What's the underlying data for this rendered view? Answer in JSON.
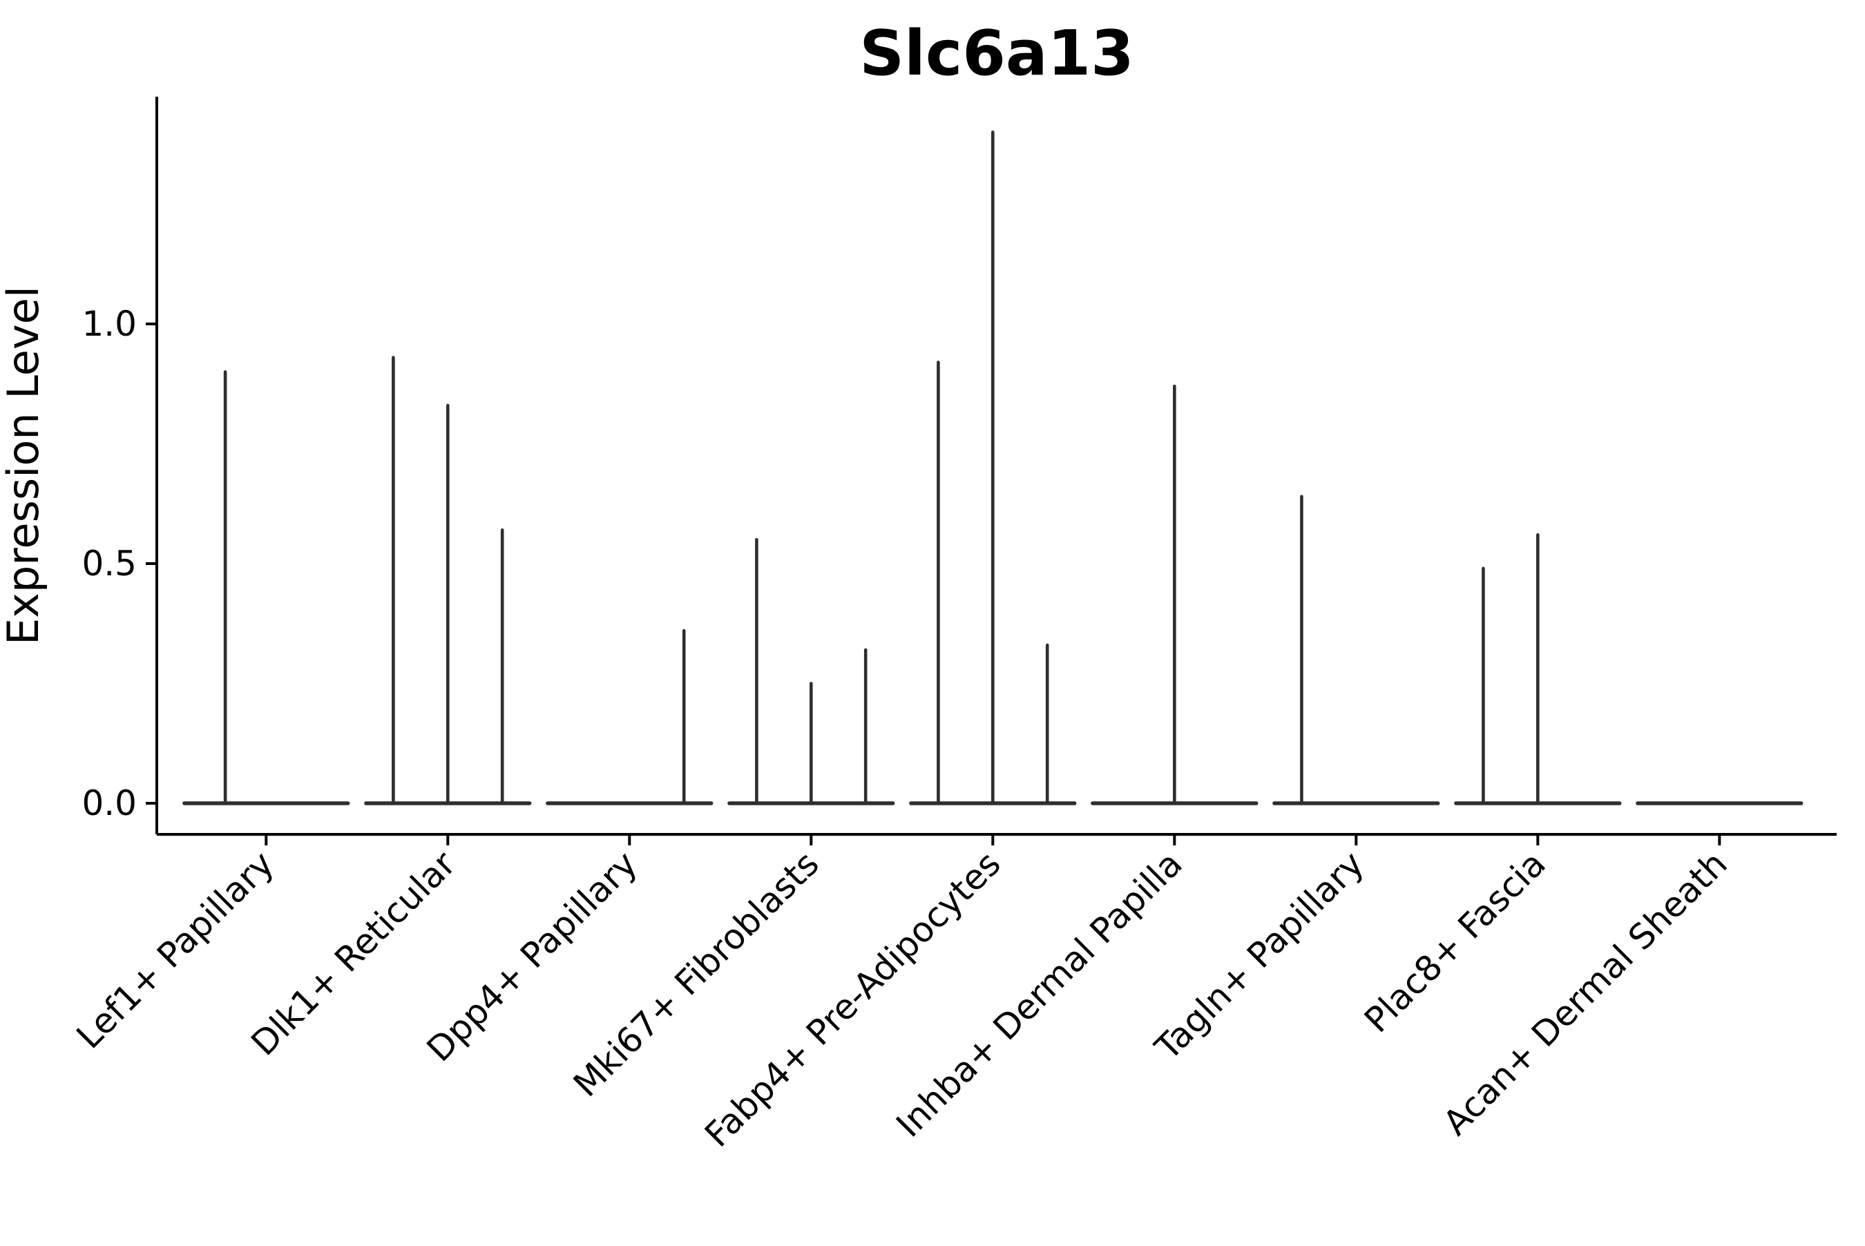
{
  "chart_data": {
    "type": "violin",
    "title": "Slc6a13",
    "ylabel": "Expression Level",
    "xlabel": "",
    "ylim": [
      0,
      1.45
    ],
    "grid": false,
    "legend": "none",
    "yticks": [
      {
        "value": 0.0,
        "label": "0.0"
      },
      {
        "value": 0.5,
        "label": "0.5"
      },
      {
        "value": 1.0,
        "label": "1.0"
      }
    ],
    "categories": [
      {
        "label": "Lef1+ Papillary",
        "spikes": [
          {
            "offset_frac": -0.225,
            "max": 0.9
          }
        ]
      },
      {
        "label": "Dlk1+ Reticular",
        "spikes": [
          {
            "offset_frac": -0.3,
            "max": 0.93
          },
          {
            "offset_frac": 0,
            "max": 0.83
          },
          {
            "offset_frac": 0.3,
            "max": 0.57
          }
        ]
      },
      {
        "label": "Dpp4+ Papillary",
        "spikes": [
          {
            "offset_frac": 0.3,
            "max": 0.36
          }
        ]
      },
      {
        "label": "Mki67+ Fibroblasts",
        "spikes": [
          {
            "offset_frac": -0.3,
            "max": 0.55
          },
          {
            "offset_frac": 0,
            "max": 0.25
          },
          {
            "offset_frac": 0.3,
            "max": 0.32
          }
        ]
      },
      {
        "label": "Fabp4+ Pre-Adipocytes",
        "spikes": [
          {
            "offset_frac": -0.3,
            "max": 0.92
          },
          {
            "offset_frac": 0,
            "max": 1.4
          },
          {
            "offset_frac": 0.3,
            "max": 0.33
          }
        ]
      },
      {
        "label": "Inhba+ Dermal Papilla",
        "spikes": [
          {
            "offset_frac": 0,
            "max": 0.87
          }
        ]
      },
      {
        "label": "Tagln+ Papillary",
        "spikes": [
          {
            "offset_frac": -0.3,
            "max": 0.64
          }
        ]
      },
      {
        "label": "Plac8+ Fascia",
        "spikes": [
          {
            "offset_frac": -0.3,
            "max": 0.49
          },
          {
            "offset_frac": 0,
            "max": 0.56
          }
        ]
      },
      {
        "label": "Acan+ Dermal Sheath",
        "spikes": []
      }
    ],
    "colors": {
      "violin": "#2e2e2e",
      "axis": "#000000",
      "text": "#000000",
      "background": "#ffffff"
    }
  }
}
